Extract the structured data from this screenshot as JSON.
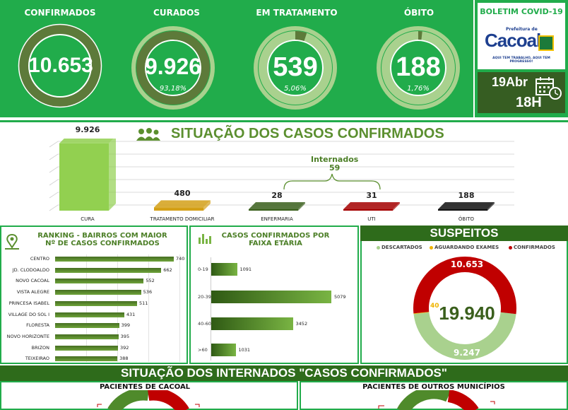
{
  "kpis": [
    {
      "title": "CONFIRMADOS",
      "value": "10.653",
      "pct": "",
      "fraction": 1.0
    },
    {
      "title": "CURADOS",
      "value": "9.926",
      "pct": "93,18%",
      "fraction": 0.9318
    },
    {
      "title": "EM TRATAMENTO",
      "value": "539",
      "pct": "5,06%",
      "fraction": 0.0506
    },
    {
      "title": "ÓBITO",
      "value": "188",
      "pct": "1,76%",
      "fraction": 0.0176
    }
  ],
  "boletim": {
    "title": "BOLETIM COVID-19",
    "logo_top": "Prefeitura de",
    "logo_name": "Cacoal",
    "logo_slogan": "AQUI TEM TRABALHO, AQUI TEM PROGRESSO!",
    "date": "19Abr",
    "hour": "18H"
  },
  "situacao": {
    "title": "SITUAÇÃO DOS CASOS CONFIRMADOS",
    "internados_label": "Internados",
    "internados_value": "59"
  },
  "chart_data": [
    {
      "type": "bar",
      "title": "SITUAÇÃO DOS CASOS CONFIRMADOS",
      "categories": [
        "CURA",
        "TRATAMENTO DOMICILIAR",
        "ENFERMARIA",
        "UTI",
        "ÓBITO"
      ],
      "values": [
        9926,
        480,
        28,
        31,
        188
      ],
      "value_labels": [
        "9.926",
        "480",
        "28",
        "31",
        "188"
      ],
      "colors": [
        "#92d050",
        "#d4a017",
        "#3a5f1c",
        "#a50000",
        "#111111"
      ]
    },
    {
      "type": "bar",
      "title": "RANKING - BAIRROS COM MAIOR Nº DE CASOS CONFIRMADOS",
      "categories": [
        "CENTRO",
        "JD. CLODOALDO",
        "NOVO CACOAL",
        "VISTA ALEGRE",
        "PRINCESA ISABEL",
        "VILLAGE DO SOL I",
        "FLORESTA",
        "NOVO HORIZONTE",
        "BRIZON",
        "TEIXEIRAO"
      ],
      "values": [
        740,
        662,
        552,
        536,
        511,
        431,
        399,
        395,
        392,
        388
      ]
    },
    {
      "type": "bar",
      "title": "CASOS CONFIRMADOS POR FAIXA ETÁRIA",
      "categories": [
        "0-19",
        "20-39",
        "40-60",
        ">60"
      ],
      "values": [
        1091,
        5079,
        3452,
        1031
      ]
    },
    {
      "type": "pie",
      "title": "SUSPEITOS",
      "categories": [
        "DESCARTADOS",
        "AGUARDANDO EXAMES",
        "CONFIRMADOS"
      ],
      "values": [
        9247,
        40,
        10653
      ],
      "value_labels": [
        "9.247",
        "40",
        "10.653"
      ],
      "total": "19.940",
      "colors": [
        "#a9d18e",
        "#f0b400",
        "#c00000"
      ]
    }
  ],
  "ranking_title_1": "RANKING - BAIRROS COM MAIOR",
  "ranking_title_2": "Nº DE CASOS CONFIRMADOS",
  "faixa_title_1": "CASOS CONFIRMADOS POR",
  "faixa_title_2": "FAIXA ETÁRIA",
  "suspeitos_title": "SUSPEITOS",
  "internados_section": {
    "title": "SITUAÇÃO DOS INTERNADOS \"CASOS CONFIRMADOS\"",
    "left": "PACIENTES DE CACOAL",
    "right": "PACIENTES DE OUTROS MUNICÍPIOS"
  }
}
